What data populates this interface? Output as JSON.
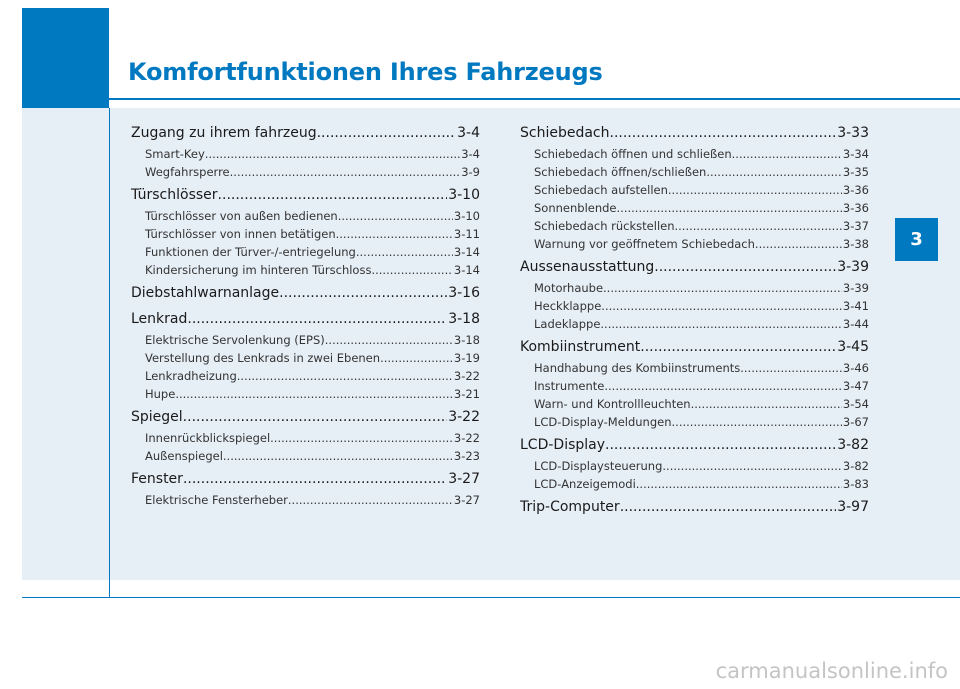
{
  "chapter_title": "Komfortfunktionen Ihres Fahrzeugs",
  "chapter_number": "3",
  "watermark": "carmanualsonline.info",
  "left_column": [
    {
      "title": "Zugang zu ihrem fahrzeug",
      "page": "3-4",
      "items": [
        {
          "title": "Smart-Key",
          "page": "3-4"
        },
        {
          "title": "Wegfahrsperre",
          "page": "3-9"
        }
      ]
    },
    {
      "title": "Türschlösser",
      "page": "3-10",
      "items": [
        {
          "title": "Türschlösser von außen bedienen",
          "page": "3-10"
        },
        {
          "title": "Türschlösser von innen betätigen",
          "page": "3-11"
        },
        {
          "title": "Funktionen der Türver-/-entriegelung",
          "page": "3-14"
        },
        {
          "title": "Kindersicherung im hinteren Türschloss",
          "page": "3-14"
        }
      ]
    },
    {
      "title": "Diebstahlwarnanlage",
      "page": "3-16",
      "items": []
    },
    {
      "title": "Lenkrad",
      "page": "3-18",
      "items": [
        {
          "title": "Elektrische Servolenkung (EPS)",
          "page": "3-18"
        },
        {
          "title": "Verstellung des Lenkrads in zwei Ebenen",
          "page": "3-19"
        },
        {
          "title": "Lenkradheizung",
          "page": "3-22"
        },
        {
          "title": "Hupe",
          "page": "3-21"
        }
      ]
    },
    {
      "title": "Spiegel",
      "page": "3-22",
      "items": [
        {
          "title": "Innenrückblickspiegel",
          "page": "3-22"
        },
        {
          "title": "Außenspiegel",
          "page": "3-23"
        }
      ]
    },
    {
      "title": "Fenster",
      "page": "3-27",
      "items": [
        {
          "title": "Elektrische Fensterheber",
          "page": "3-27"
        }
      ]
    }
  ],
  "right_column": [
    {
      "title": "Schiebedach",
      "page": "3-33",
      "items": [
        {
          "title": "Schiebedach öffnen und schließen",
          "page": "3-34"
        },
        {
          "title": "Schiebedach öffnen/schließen",
          "page": "3-35"
        },
        {
          "title": "Schiebedach aufstellen",
          "page": "3-36"
        },
        {
          "title": "Sonnenblende",
          "page": "3-36"
        },
        {
          "title": "Schiebedach rückstellen",
          "page": "3-37"
        },
        {
          "title": "Warnung vor geöffnetem Schiebedach",
          "page": "3-38"
        }
      ]
    },
    {
      "title": "Aussenausstattung",
      "page": "3-39",
      "items": [
        {
          "title": "Motorhaube",
          "page": "3-39"
        },
        {
          "title": "Heckklappe",
          "page": "3-41"
        },
        {
          "title": "Ladeklappe",
          "page": "3-44"
        }
      ]
    },
    {
      "title": "Kombiinstrument",
      "page": "3-45",
      "items": [
        {
          "title": "Handhabung des Kombiinstruments",
          "page": "3-46"
        },
        {
          "title": "Instrumente",
          "page": "3-47"
        },
        {
          "title": "Warn- und Kontrollleuchten",
          "page": "3-54"
        },
        {
          "title": "LCD-Display-Meldungen",
          "page": "3-67"
        }
      ]
    },
    {
      "title": "LCD-Display",
      "page": "3-82",
      "items": [
        {
          "title": "LCD-Displaysteuerung",
          "page": "3-82"
        },
        {
          "title": "LCD-Anzeigemodi",
          "page": "3-83"
        }
      ]
    },
    {
      "title": "Trip-Computer",
      "page": "3-97",
      "items": []
    }
  ]
}
